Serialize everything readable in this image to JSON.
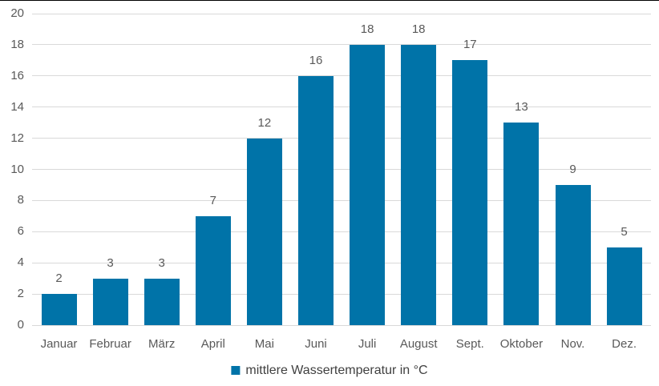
{
  "chart_data": {
    "type": "bar",
    "title": "",
    "categories": [
      "Januar",
      "Februar",
      "März",
      "April",
      "Mai",
      "Juni",
      "Juli",
      "August",
      "Sept.",
      "Oktober",
      "Nov.",
      "Dez."
    ],
    "values": [
      2,
      3,
      3,
      7,
      12,
      16,
      18,
      18,
      17,
      13,
      9,
      5
    ],
    "yticks": [
      0,
      2,
      4,
      6,
      8,
      10,
      12,
      14,
      16,
      18,
      20
    ],
    "ylim": [
      0,
      20
    ],
    "xlabel": "",
    "ylabel": "",
    "grid": true,
    "legend": "mittlere Wassertemperatur in °C",
    "legend_position": "bottom-center",
    "bar_color": "#0073a8",
    "gridline_color": "#d9d9d9",
    "axis_label_color": "#595959",
    "value_label_color": "#595959",
    "legend_text_color": "#404040",
    "background_color": "#ffffff",
    "top_border_color": "#000000"
  }
}
